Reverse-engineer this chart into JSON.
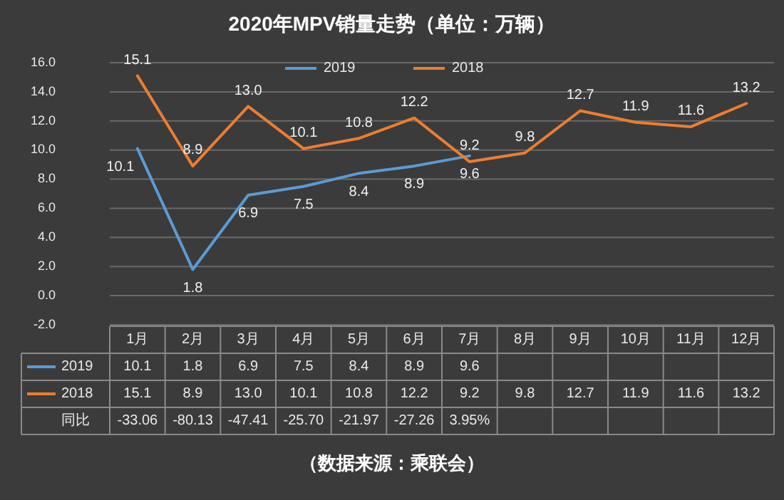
{
  "chart_data": {
    "type": "line",
    "title": "2020年MPV销量走势（单位：万辆）",
    "categories": [
      "1月",
      "2月",
      "3月",
      "4月",
      "5月",
      "6月",
      "7月",
      "8月",
      "9月",
      "10月",
      "11月",
      "12月"
    ],
    "series": [
      {
        "name": "2019",
        "color": "#5b9bd5",
        "values": [
          10.1,
          1.8,
          6.9,
          7.5,
          8.4,
          8.9,
          9.6,
          null,
          null,
          null,
          null,
          null
        ],
        "value_labels": [
          "10.1",
          "1.8",
          "6.9",
          "7.5",
          "8.4",
          "8.9",
          "9.6",
          null,
          null,
          null,
          null,
          null
        ]
      },
      {
        "name": "2018",
        "color": "#ed7d31",
        "values": [
          15.1,
          8.9,
          13.0,
          10.1,
          10.8,
          12.2,
          9.2,
          9.8,
          12.7,
          11.9,
          11.6,
          13.2
        ],
        "value_labels": [
          "15.1",
          "8.9",
          "13.0",
          "10.1",
          "10.8",
          "12.2",
          "9.2",
          "9.8",
          "12.7",
          "11.9",
          "11.6",
          "13.2"
        ]
      }
    ],
    "ylim": [
      -2,
      16
    ],
    "yticks": [
      {
        "value": -2,
        "label": "-2.0"
      },
      {
        "value": 0,
        "label": "0.0"
      },
      {
        "value": 2,
        "label": "2.0"
      },
      {
        "value": 4,
        "label": "4.0"
      },
      {
        "value": 6,
        "label": "6.0"
      },
      {
        "value": 8,
        "label": "8.0"
      },
      {
        "value": 10,
        "label": "10.0"
      },
      {
        "value": 12,
        "label": "12.0"
      },
      {
        "value": 14,
        "label": "14.0"
      },
      {
        "value": 16,
        "label": "16.0"
      }
    ],
    "grid": "y",
    "legend": "top",
    "marker": "none",
    "line_style": "solid",
    "annotations": [
      "同比",
      "-33.06",
      "-80.13",
      "-47.41",
      "-25.70",
      "-21.97",
      "-27.26",
      "3.95%",
      "（数据来源：乘联会）"
    ]
  }
}
